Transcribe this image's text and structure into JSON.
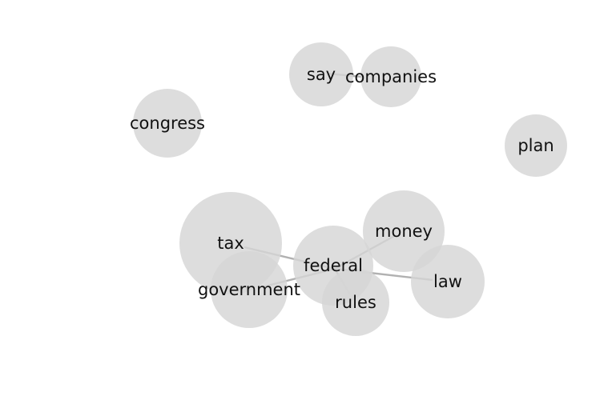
{
  "diagram": {
    "nodes": [
      {
        "id": "say",
        "label": "say"
      },
      {
        "id": "companies",
        "label": "companies"
      },
      {
        "id": "congress",
        "label": "congress"
      },
      {
        "id": "plan",
        "label": "plan"
      },
      {
        "id": "tax",
        "label": "tax"
      },
      {
        "id": "government",
        "label": "government"
      },
      {
        "id": "federal",
        "label": "federal"
      },
      {
        "id": "money",
        "label": "money"
      },
      {
        "id": "law",
        "label": "law"
      },
      {
        "id": "rules",
        "label": "rules"
      }
    ],
    "edges": [
      {
        "source": "say",
        "target": "companies"
      },
      {
        "source": "federal",
        "target": "tax"
      },
      {
        "source": "federal",
        "target": "government"
      },
      {
        "source": "federal",
        "target": "money"
      },
      {
        "source": "federal",
        "target": "law"
      },
      {
        "source": "federal",
        "target": "rules"
      }
    ]
  }
}
